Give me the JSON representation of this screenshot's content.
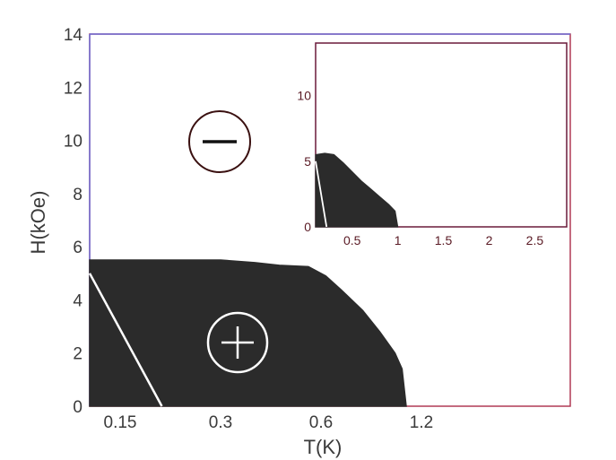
{
  "chart_data": [
    {
      "id": "main",
      "type": "area",
      "xlabel": "T(K)",
      "ylabel": "H(kOe)",
      "x_ticks": [
        "0.15",
        "0.3",
        "0.6",
        "1.2"
      ],
      "y_ticks": [
        "0",
        "2",
        "4",
        "6",
        "8",
        "10",
        "12",
        "14"
      ],
      "ylim": [
        0,
        14
      ],
      "grid": false,
      "region_labels": [
        {
          "name": "negative-region",
          "symbol": "−"
        },
        {
          "name": "positive-region",
          "symbol": "+"
        }
      ],
      "phase_boundary": [
        {
          "x": 0.075,
          "y": 5.5
        },
        {
          "x": 0.1,
          "y": 5.5
        },
        {
          "x": 0.15,
          "y": 5.5
        },
        {
          "x": 0.2,
          "y": 5.5
        },
        {
          "x": 0.3,
          "y": 5.5
        },
        {
          "x": 0.38,
          "y": 5.4
        },
        {
          "x": 0.45,
          "y": 5.3
        },
        {
          "x": 0.55,
          "y": 5.25
        },
        {
          "x": 0.62,
          "y": 4.9
        },
        {
          "x": 0.7,
          "y": 4.3
        },
        {
          "x": 0.8,
          "y": 3.6
        },
        {
          "x": 0.9,
          "y": 2.8
        },
        {
          "x": 1.0,
          "y": 2.0
        },
        {
          "x": 1.05,
          "y": 1.4
        },
        {
          "x": 1.08,
          "y": 0
        }
      ],
      "reference_line": [
        {
          "x": 0.08,
          "y": 5.0
        },
        {
          "x": 0.2,
          "y": 0
        }
      ]
    },
    {
      "id": "inset",
      "type": "area",
      "x_ticks": [
        "0.5",
        "1",
        "1.5",
        "2",
        "2.5"
      ],
      "y_ticks": [
        "0",
        "5",
        "10"
      ],
      "xlim": [
        0.1,
        2.85
      ],
      "ylim": [
        0,
        14
      ],
      "phase_boundary": [
        {
          "x": 0.1,
          "y": 5.5
        },
        {
          "x": 0.2,
          "y": 5.6
        },
        {
          "x": 0.3,
          "y": 5.5
        },
        {
          "x": 0.4,
          "y": 4.9
        },
        {
          "x": 0.5,
          "y": 4.2
        },
        {
          "x": 0.6,
          "y": 3.5
        },
        {
          "x": 0.7,
          "y": 2.9
        },
        {
          "x": 0.8,
          "y": 2.3
        },
        {
          "x": 0.9,
          "y": 1.7
        },
        {
          "x": 0.97,
          "y": 1.2
        },
        {
          "x": 1.0,
          "y": 0
        }
      ],
      "reference_line": [
        {
          "x": 0.1,
          "y": 5.0
        },
        {
          "x": 0.22,
          "y": 0
        }
      ]
    }
  ]
}
